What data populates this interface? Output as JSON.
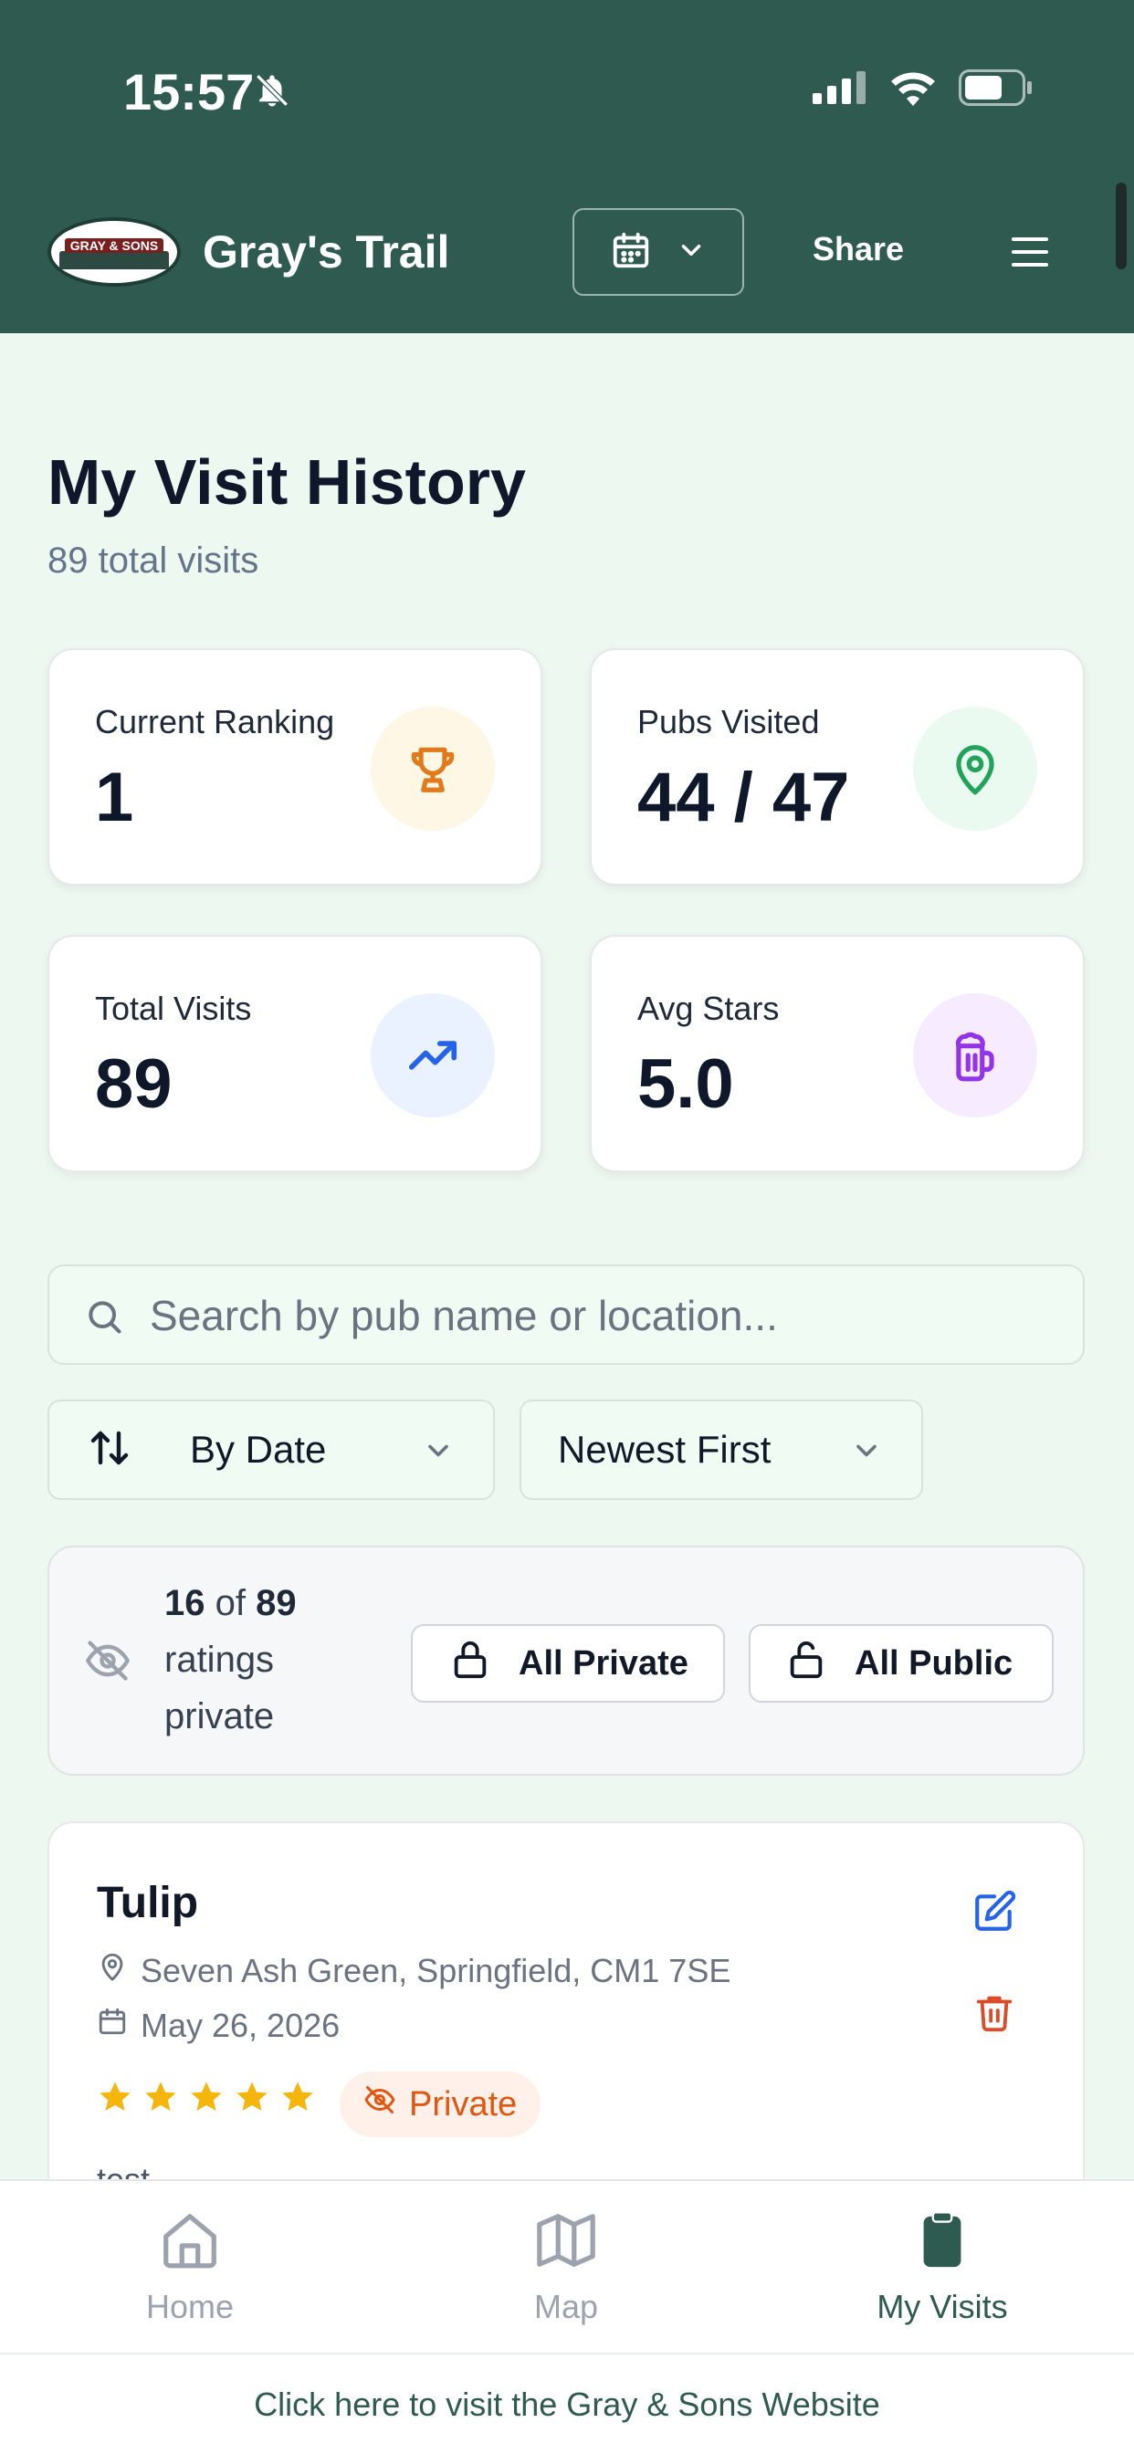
{
  "status_bar": {
    "time": "15:57"
  },
  "header": {
    "logo_text": "GRAY & SONS",
    "title": "Gray's Trail",
    "share_label": "Share"
  },
  "page": {
    "title": "My Visit History",
    "subtitle": "89 total visits"
  },
  "stats": [
    {
      "label": "Current Ranking",
      "value": "1",
      "icon": "trophy-icon",
      "color": "#e07a1a",
      "bg": "#fff7e6"
    },
    {
      "label": "Pubs Visited",
      "value": "44 / 47",
      "icon": "map-pin-icon",
      "color": "#22a35a",
      "bg": "#eafaf0"
    },
    {
      "label": "Total Visits",
      "value": "89",
      "icon": "trending-up-icon",
      "color": "#2563eb",
      "bg": "#eaf2ff"
    },
    {
      "label": "Avg Stars",
      "value": "5.0",
      "icon": "beer-mug-icon",
      "color": "#9333ea",
      "bg": "#f7ecff"
    }
  ],
  "search": {
    "placeholder": "Search by pub name or location..."
  },
  "filters": {
    "sort_by": "By Date",
    "order": "Newest First"
  },
  "privacy": {
    "private_count": "16",
    "of_word": "of",
    "total": "89",
    "suffix": "ratings private",
    "all_private_label": "All Private",
    "all_public_label": "All Public"
  },
  "visit": {
    "name": "Tulip",
    "location": "Seven Ash Green, Springfield, CM1 7SE",
    "date": "May 26, 2026",
    "stars": 5,
    "privacy_badge": "Private",
    "note": "test"
  },
  "nav": {
    "home": "Home",
    "map": "Map",
    "my_visits": "My Visits"
  },
  "footer": {
    "link": "Click here to visit the Gray & Sons Website"
  },
  "colors": {
    "header_bg": "#2f5a4f",
    "page_bg": "#edf9f0",
    "star": "#f5b50b",
    "private": "#e2560f"
  }
}
